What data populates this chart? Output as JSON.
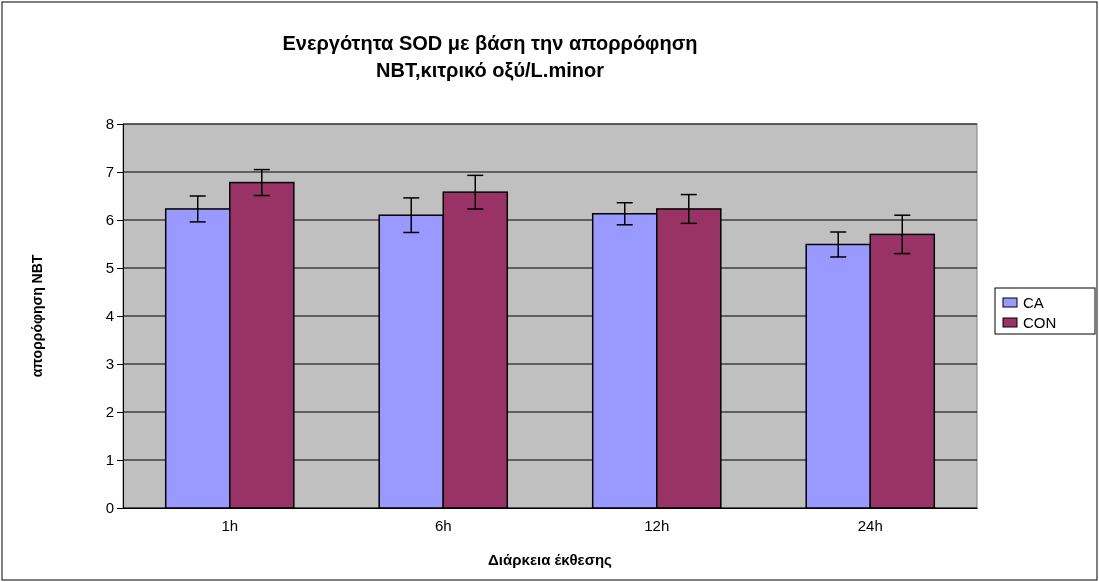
{
  "chart_data": {
    "type": "bar",
    "title": "Ενεργότητα SOD με βάση την απορρόφηση NBT,κιτρικό οξύ/L.minor",
    "xlabel": "Διάρκεια έκθεσης",
    "ylabel": "απορρόφηση NBT",
    "categories": [
      "1h",
      "6h",
      "12h",
      "24h"
    ],
    "series": [
      {
        "name": "CA",
        "color": "#9999ff",
        "values": [
          6.23,
          6.1,
          6.13,
          5.49
        ],
        "errors": [
          0.27,
          0.36,
          0.23,
          0.26
        ]
      },
      {
        "name": "CON",
        "color": "#993366",
        "values": [
          6.78,
          6.58,
          6.23,
          5.7
        ],
        "errors": [
          0.27,
          0.35,
          0.3,
          0.4
        ]
      }
    ],
    "ylim": [
      0,
      8
    ],
    "yticks": [
      0,
      1,
      2,
      3,
      4,
      5,
      6,
      7,
      8
    ],
    "grid": "y",
    "legend": "right"
  }
}
